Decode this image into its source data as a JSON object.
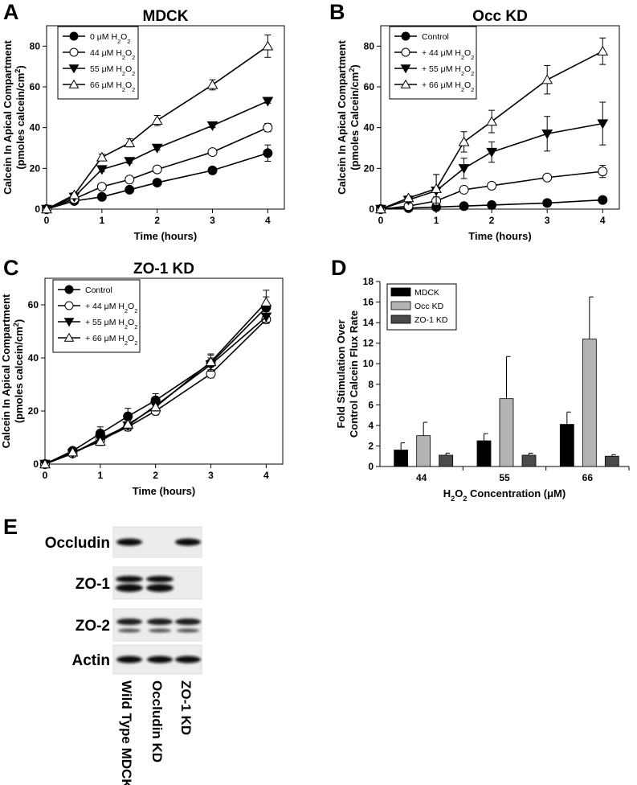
{
  "chart_data": [
    {
      "panel": "A",
      "type": "line",
      "title": "MDCK",
      "xlabel": "Time (hours)",
      "ylabel": [
        "Calcein In Apical Compartment",
        "(pmoles calcein/cm2)"
      ],
      "xlim": [
        0,
        4.3
      ],
      "ylim": [
        0,
        90
      ],
      "xticks": [
        0,
        1,
        2,
        3,
        4
      ],
      "yticks": [
        0,
        20,
        40,
        60,
        80
      ],
      "legend_position": "top-left",
      "x": [
        0,
        0.5,
        1,
        1.5,
        2,
        3,
        4
      ],
      "series": [
        {
          "name": "0 μM H2O2",
          "marker": "circle-filled",
          "values": [
            0,
            4,
            6,
            9.5,
            13,
            19,
            27.5
          ],
          "errors": [
            0,
            0.5,
            0.8,
            1,
            1,
            1,
            4
          ]
        },
        {
          "name": "44 μM H2O2",
          "marker": "circle-open",
          "values": [
            0,
            5,
            11,
            14.5,
            19.5,
            28,
            40
          ],
          "errors": [
            0,
            0.5,
            1,
            1,
            1.5,
            1,
            2
          ]
        },
        {
          "name": "55 μM H2O2",
          "marker": "triangle-down-filled",
          "values": [
            0,
            6,
            19.5,
            23.5,
            30,
            41,
            53
          ],
          "errors": [
            0,
            0.5,
            1,
            1,
            1,
            1,
            1
          ]
        },
        {
          "name": "66 μM H2O2",
          "marker": "triangle-up-open",
          "values": [
            0,
            7,
            25.5,
            32.5,
            43.5,
            61,
            80
          ],
          "errors": [
            0,
            1,
            1.5,
            2,
            2.5,
            2.5,
            5.5
          ]
        }
      ]
    },
    {
      "panel": "B",
      "type": "line",
      "title": "Occ KD",
      "xlabel": "Time (hours)",
      "ylabel": [
        "Calcein In Apical Compartment",
        "(pmoles Calcein/cm2)"
      ],
      "xlim": [
        0,
        4.3
      ],
      "ylim": [
        0,
        90
      ],
      "xticks": [
        0,
        1,
        2,
        3,
        4
      ],
      "yticks": [
        0,
        20,
        40,
        60,
        80
      ],
      "legend_position": "top-left",
      "x": [
        0,
        0.5,
        1,
        1.5,
        2,
        3,
        4
      ],
      "series": [
        {
          "name": "Control",
          "marker": "circle-filled",
          "values": [
            0,
            0.5,
            1,
            1.5,
            2,
            3,
            4.5
          ],
          "errors": [
            0,
            0.3,
            0.3,
            0.3,
            0.5,
            0.5,
            1
          ]
        },
        {
          "name": "+ 44 μM H2O2",
          "marker": "circle-open",
          "values": [
            0,
            1.5,
            4,
            9.5,
            11.5,
            15.5,
            18.5
          ],
          "errors": [
            0,
            1,
            2,
            1.5,
            1,
            1.5,
            3
          ]
        },
        {
          "name": "+ 55 μM H2O2",
          "marker": "triangle-down-filled",
          "values": [
            0,
            4.5,
            9,
            20,
            28,
            37,
            42
          ],
          "errors": [
            0,
            1.5,
            8,
            5,
            5,
            8.5,
            10.5
          ]
        },
        {
          "name": "+ 66 μM H2O2",
          "marker": "triangle-up-open",
          "values": [
            0,
            5.5,
            10,
            33,
            43,
            63.5,
            77.5
          ],
          "errors": [
            0,
            1,
            7,
            5,
            5.5,
            7,
            6.5
          ]
        }
      ]
    },
    {
      "panel": "C",
      "type": "line",
      "title": "ZO-1 KD",
      "xlabel": "Time (hours)",
      "ylabel": [
        "Calcein In Apical Compartment",
        "(pmoles calcein/cm2)"
      ],
      "xlim": [
        0,
        4.3
      ],
      "ylim": [
        0,
        70
      ],
      "xticks": [
        0,
        1,
        2,
        3,
        4
      ],
      "yticks": [
        0,
        20,
        40,
        60
      ],
      "legend_position": "top-left",
      "x": [
        0,
        0.5,
        1,
        1.5,
        2,
        3,
        4
      ],
      "series": [
        {
          "name": "Control",
          "marker": "circle-filled",
          "values": [
            0,
            5,
            11.5,
            18,
            24,
            38,
            59
          ],
          "errors": [
            0,
            0.8,
            2.5,
            3,
            2.5,
            3,
            4
          ]
        },
        {
          "name": "+ 44 μM H2O2",
          "marker": "circle-open",
          "values": [
            0,
            4,
            9,
            14,
            20,
            34,
            54.5
          ],
          "errors": [
            0,
            0.5,
            1.5,
            1.5,
            1.5,
            1.5,
            1.5
          ]
        },
        {
          "name": "+ 55 μM H2O2",
          "marker": "triangle-down-filled",
          "values": [
            0,
            4,
            9.5,
            14.5,
            22,
            37.5,
            55.5
          ],
          "errors": [
            0,
            0.5,
            1.5,
            1.5,
            2,
            2.5,
            2
          ]
        },
        {
          "name": "+ 66 μM H2O2",
          "marker": "triangle-up-open",
          "values": [
            0,
            4.5,
            8.5,
            15,
            21.5,
            38.5,
            61
          ],
          "errors": [
            0,
            0.5,
            1.5,
            1.5,
            1.5,
            3,
            4.5
          ]
        }
      ]
    },
    {
      "panel": "D",
      "type": "bar",
      "xlabel": "H2O2 Concentration (μM)",
      "ylabel": [
        "Fold Stimulation Over",
        "Control Calcein Flux Rate"
      ],
      "ylim": [
        0,
        18
      ],
      "yticks": [
        0,
        2,
        4,
        6,
        8,
        10,
        12,
        14,
        16,
        18
      ],
      "categories": [
        "44",
        "55",
        "66"
      ],
      "legend_position": "top-left",
      "series": [
        {
          "name": "MDCK",
          "color": "#000000",
          "values": [
            1.6,
            2.5,
            4.1
          ],
          "errors": [
            0.7,
            0.7,
            1.2
          ]
        },
        {
          "name": "Occ KD",
          "color": "#b4b4b4",
          "values": [
            3.0,
            6.6,
            12.4
          ],
          "errors": [
            1.3,
            4.1,
            4.1
          ]
        },
        {
          "name": "ZO-1 KD",
          "color": "#4a4a4a",
          "values": [
            1.1,
            1.1,
            1.0
          ],
          "errors": [
            0.2,
            0.2,
            0.15
          ]
        }
      ]
    }
  ],
  "panel_e": {
    "label": "E",
    "rows": [
      {
        "label": "Occludin",
        "bands": [
          1,
          0,
          1
        ]
      },
      {
        "label": "ZO-1",
        "bands": [
          1,
          1,
          0
        ]
      },
      {
        "label": "ZO-2",
        "bands": [
          1,
          1,
          1
        ]
      },
      {
        "label": "Actin",
        "bands": [
          1,
          1,
          1
        ]
      }
    ],
    "lanes": [
      "Wild Type MDCK",
      "Occludin KD",
      "ZO-1 KD"
    ]
  },
  "colors": {
    "axis": "#000000",
    "background": "#ffffff"
  }
}
